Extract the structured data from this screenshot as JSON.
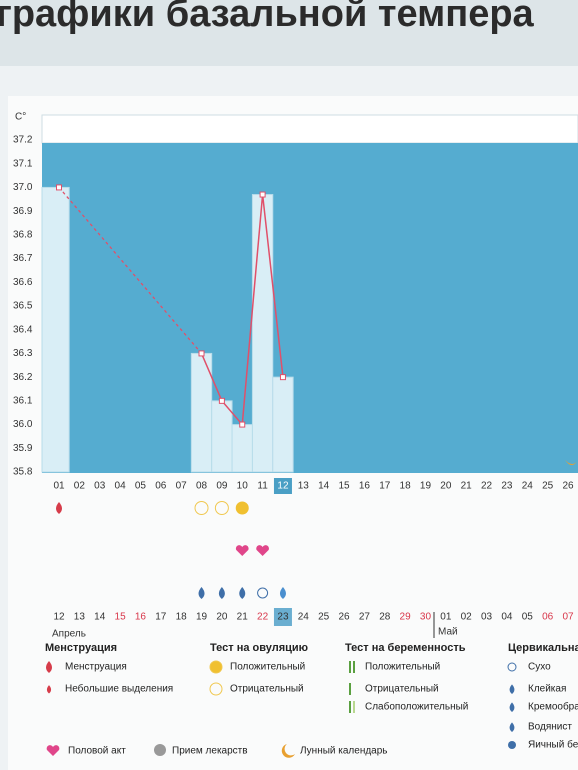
{
  "page_title": "графики базальной темпера",
  "chart_data": {
    "type": "line",
    "y_label": "C°",
    "categories": [
      "01",
      "02",
      "03",
      "04",
      "05",
      "06",
      "07",
      "08",
      "09",
      "10",
      "11",
      "12",
      "13",
      "14",
      "15",
      "16",
      "17",
      "18",
      "19",
      "20",
      "21",
      "22",
      "23",
      "24",
      "25",
      "26"
    ],
    "values": [
      37.0,
      null,
      null,
      null,
      null,
      null,
      null,
      36.3,
      36.1,
      36.0,
      36.97,
      36.2,
      null,
      null,
      null,
      null,
      null,
      null,
      null,
      null,
      null,
      null,
      null,
      null,
      null,
      null
    ],
    "color": "#e0506a",
    "ylim": [
      35.8,
      37.2
    ],
    "yticks": [
      35.8,
      35.9,
      {
        "value": 36.0,
        "label": "36.0"
      },
      36.1,
      36.2,
      36.3,
      36.4,
      36.5,
      36.6,
      36.7,
      36.8,
      36.9,
      {
        "value": 37.0,
        "label": "37.0"
      },
      37.1,
      37.2
    ],
    "grid": false
  },
  "dates": [
    "12",
    "13",
    "14",
    "15",
    "16",
    "17",
    "18",
    "19",
    "20",
    "21",
    "22",
    "23",
    "24",
    "25",
    "26",
    "27",
    "28",
    "29",
    "30",
    "01",
    "02",
    "03",
    "04",
    "05",
    "06",
    "07"
  ],
  "months": [
    "Апрель",
    "Май"
  ],
  "legend": {
    "menstruation": {
      "title": "Менструация",
      "items": [
        "Менструация",
        "Небольшие выделения"
      ]
    },
    "ovulation": {
      "title": "Тест на овуляцию",
      "items": [
        "Положительный",
        "Отрицательный"
      ]
    },
    "pregnancy": {
      "title": "Тест на беременность",
      "items": [
        "Положительный",
        "Отрицательный",
        "Слабоположительный"
      ]
    },
    "cervical": {
      "title": "Цервикальна",
      "items": [
        "Сухо",
        "Клейкая",
        "Кремообра",
        "Водянист",
        "Яичный бе"
      ]
    },
    "other": [
      "Половой акт",
      "Прием лекарств",
      "Лунный календарь"
    ]
  }
}
